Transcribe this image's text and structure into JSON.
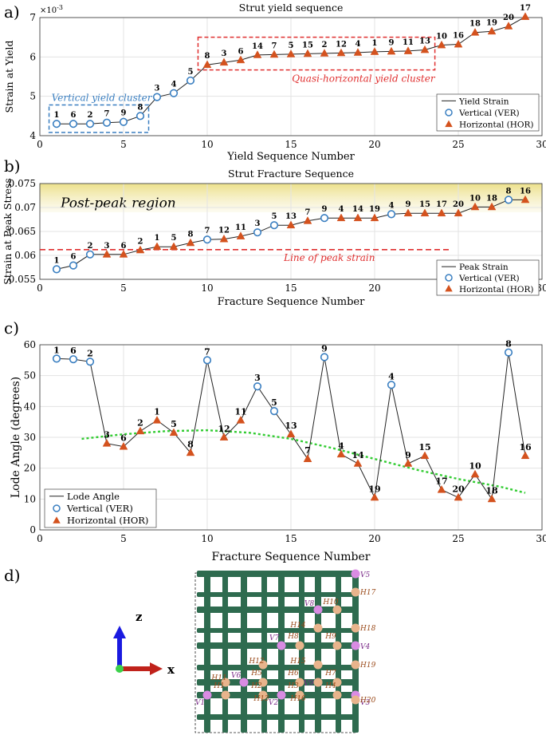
{
  "colors": {
    "ver": "#3a7fc1",
    "hor": "#d4521e",
    "line": "#222222",
    "peak": "#e03030",
    "trend": "#33cc33",
    "strut": "#2e6b4f",
    "node": "#e8b48c",
    "vnode": "#d98be3",
    "cluster_ver": "#3a7fc1",
    "cluster_hor": "#e03030"
  },
  "panels": {
    "a": {
      "letter": "a)",
      "title": "Strut yield sequence",
      "ylabel": "Strain at Yield",
      "xlabel": "Yield Sequence Number",
      "exponent": "×10",
      "exponent_power": "-3",
      "annot_ver": "Vertical yield cluster",
      "annot_hor": "Quasi-horizontal yield cluster",
      "legend": {
        "line": "Yield Strain",
        "ver": "Vertical (VER)",
        "hor": "Horizontal (HOR)"
      }
    },
    "b": {
      "letter": "b)",
      "title": "Strut Fracture Sequence",
      "ylabel": "Strain at Peak Stress",
      "xlabel": "Fracture Sequence Number",
      "region": "Post-peak region",
      "peak_line": "Line of peak strain",
      "legend": {
        "line": "Peak Strain",
        "ver": "Vertical (VER)",
        "hor": "Horizontal (HOR)"
      }
    },
    "c": {
      "letter": "c)",
      "ylabel": "Lode Angle (degrees)",
      "xlabel": "Fracture Sequence Number",
      "legend": {
        "line": "Lode Angle",
        "ver": "Vertical (VER)",
        "hor": "Horizontal (HOR)"
      }
    },
    "d": {
      "letter": "d)",
      "axis_z": "z",
      "axis_x": "x",
      "vlabels": [
        "V1",
        "V2",
        "V3",
        "V4",
        "V5",
        "V6",
        "V7",
        "V8",
        "V9"
      ],
      "hlabels": [
        "H1",
        "H2",
        "H3",
        "H4",
        "H5",
        "H6",
        "H7",
        "H8",
        "H9",
        "H10",
        "H11",
        "H12",
        "H13",
        "H14",
        "H15",
        "H16",
        "H17",
        "H18",
        "H19",
        "H20"
      ]
    }
  },
  "chart_data": [
    {
      "type": "line",
      "panel": "a",
      "xlim": [
        0,
        30
      ],
      "ylim": [
        4,
        7
      ],
      "xticks": [
        "0",
        "5",
        "10",
        "15",
        "20",
        "25",
        "30"
      ],
      "yticks": [
        "4",
        "5",
        "6",
        "7"
      ],
      "x": [
        1,
        2,
        3,
        4,
        5,
        6,
        7,
        8,
        9,
        10,
        11,
        12,
        13,
        14,
        15,
        16,
        17,
        18,
        19,
        20,
        21,
        22,
        23,
        24,
        25,
        26,
        27,
        28,
        29
      ],
      "y": [
        4.3,
        4.3,
        4.3,
        4.33,
        4.35,
        4.5,
        4.98,
        5.08,
        5.4,
        5.8,
        5.86,
        5.92,
        6.05,
        6.06,
        6.07,
        6.08,
        6.09,
        6.1,
        6.11,
        6.13,
        6.14,
        6.15,
        6.18,
        6.3,
        6.32,
        6.62,
        6.65,
        6.78,
        7.02
      ],
      "labels": [
        "1",
        "6",
        "2",
        "7",
        "9",
        "8",
        "3",
        "4",
        "5",
        "8",
        "3",
        "6",
        "14",
        "7",
        "5",
        "15",
        "2",
        "12",
        "4",
        "1",
        "9",
        "11",
        "13",
        "10",
        "16",
        "18",
        "19",
        "20",
        "17"
      ],
      "kind": [
        "V",
        "V",
        "V",
        "V",
        "V",
        "V",
        "V",
        "V",
        "V",
        "H",
        "H",
        "H",
        "H",
        "H",
        "H",
        "H",
        "H",
        "H",
        "H",
        "H",
        "H",
        "H",
        "H",
        "H",
        "H",
        "H",
        "H",
        "H",
        "H"
      ]
    },
    {
      "type": "line",
      "panel": "b",
      "xlim": [
        0,
        30
      ],
      "ylim": [
        0.055,
        0.075
      ],
      "xticks": [
        "0",
        "5",
        "10",
        "15",
        "20",
        "25",
        "30"
      ],
      "yticks": [
        "0.055",
        "0.06",
        "0.065",
        "0.07",
        "0.075"
      ],
      "peak_strain": 0.0612,
      "x": [
        1,
        2,
        3,
        4,
        5,
        6,
        7,
        8,
        9,
        10,
        11,
        12,
        13,
        14,
        15,
        16,
        17,
        18,
        19,
        20,
        21,
        22,
        23,
        24,
        25,
        26,
        27,
        28,
        29
      ],
      "y": [
        0.0571,
        0.0579,
        0.0602,
        0.0602,
        0.0602,
        0.0611,
        0.0618,
        0.0618,
        0.0626,
        0.0633,
        0.0634,
        0.064,
        0.0648,
        0.0663,
        0.0663,
        0.0672,
        0.0678,
        0.0678,
        0.0678,
        0.0678,
        0.0686,
        0.0688,
        0.0688,
        0.0688,
        0.0688,
        0.0701,
        0.0701,
        0.0716,
        0.0716
      ],
      "labels": [
        "1",
        "6",
        "2",
        "3",
        "6",
        "2",
        "1",
        "5",
        "8",
        "7",
        "12",
        "11",
        "3",
        "5",
        "13",
        "7",
        "9",
        "4",
        "14",
        "19",
        "4",
        "9",
        "15",
        "17",
        "20",
        "10",
        "18",
        "8",
        "16"
      ],
      "kind": [
        "V",
        "V",
        "V",
        "H",
        "H",
        "H",
        "H",
        "H",
        "H",
        "V",
        "H",
        "H",
        "V",
        "V",
        "H",
        "H",
        "V",
        "H",
        "H",
        "H",
        "V",
        "H",
        "H",
        "H",
        "H",
        "H",
        "H",
        "V",
        "H"
      ]
    },
    {
      "type": "line",
      "panel": "c",
      "xlim": [
        0,
        30
      ],
      "ylim": [
        0,
        60
      ],
      "xticks": [
        "0",
        "5",
        "10",
        "15",
        "20",
        "25",
        "30"
      ],
      "yticks": [
        "0",
        "10",
        "20",
        "30",
        "40",
        "50",
        "60"
      ],
      "x": [
        1,
        2,
        3,
        4,
        5,
        6,
        7,
        8,
        9,
        10,
        11,
        12,
        13,
        14,
        15,
        16,
        17,
        18,
        19,
        20,
        21,
        22,
        23,
        24,
        25,
        26,
        27,
        28,
        29
      ],
      "y": [
        55.5,
        55.3,
        54.5,
        28,
        27,
        32,
        35.5,
        31.5,
        25,
        55,
        30,
        35.5,
        46.5,
        38.5,
        31,
        23,
        56,
        24.5,
        21.5,
        10.5,
        47,
        21.5,
        24,
        13,
        10.5,
        18,
        10,
        57.5,
        24
      ],
      "labels": [
        "1",
        "6",
        "2",
        "3",
        "6",
        "2",
        "1",
        "5",
        "8",
        "7",
        "12",
        "11",
        "3",
        "5",
        "13",
        "7",
        "9",
        "4",
        "14",
        "19",
        "4",
        "9",
        "15",
        "17",
        "20",
        "10",
        "18",
        "8",
        "16"
      ],
      "kind": [
        "V",
        "V",
        "V",
        "H",
        "H",
        "H",
        "H",
        "H",
        "H",
        "V",
        "H",
        "H",
        "V",
        "V",
        "H",
        "H",
        "V",
        "H",
        "H",
        "H",
        "V",
        "H",
        "H",
        "H",
        "H",
        "H",
        "H",
        "V",
        "H"
      ],
      "trend_x": [
        2.5,
        5,
        7.5,
        10,
        12.5,
        15,
        17.5,
        20,
        22.5,
        25,
        27.5,
        29
      ],
      "trend_y": [
        29.5,
        31,
        32,
        32.3,
        31.5,
        29.5,
        26.5,
        23,
        19.5,
        16.5,
        14,
        12
      ]
    }
  ]
}
